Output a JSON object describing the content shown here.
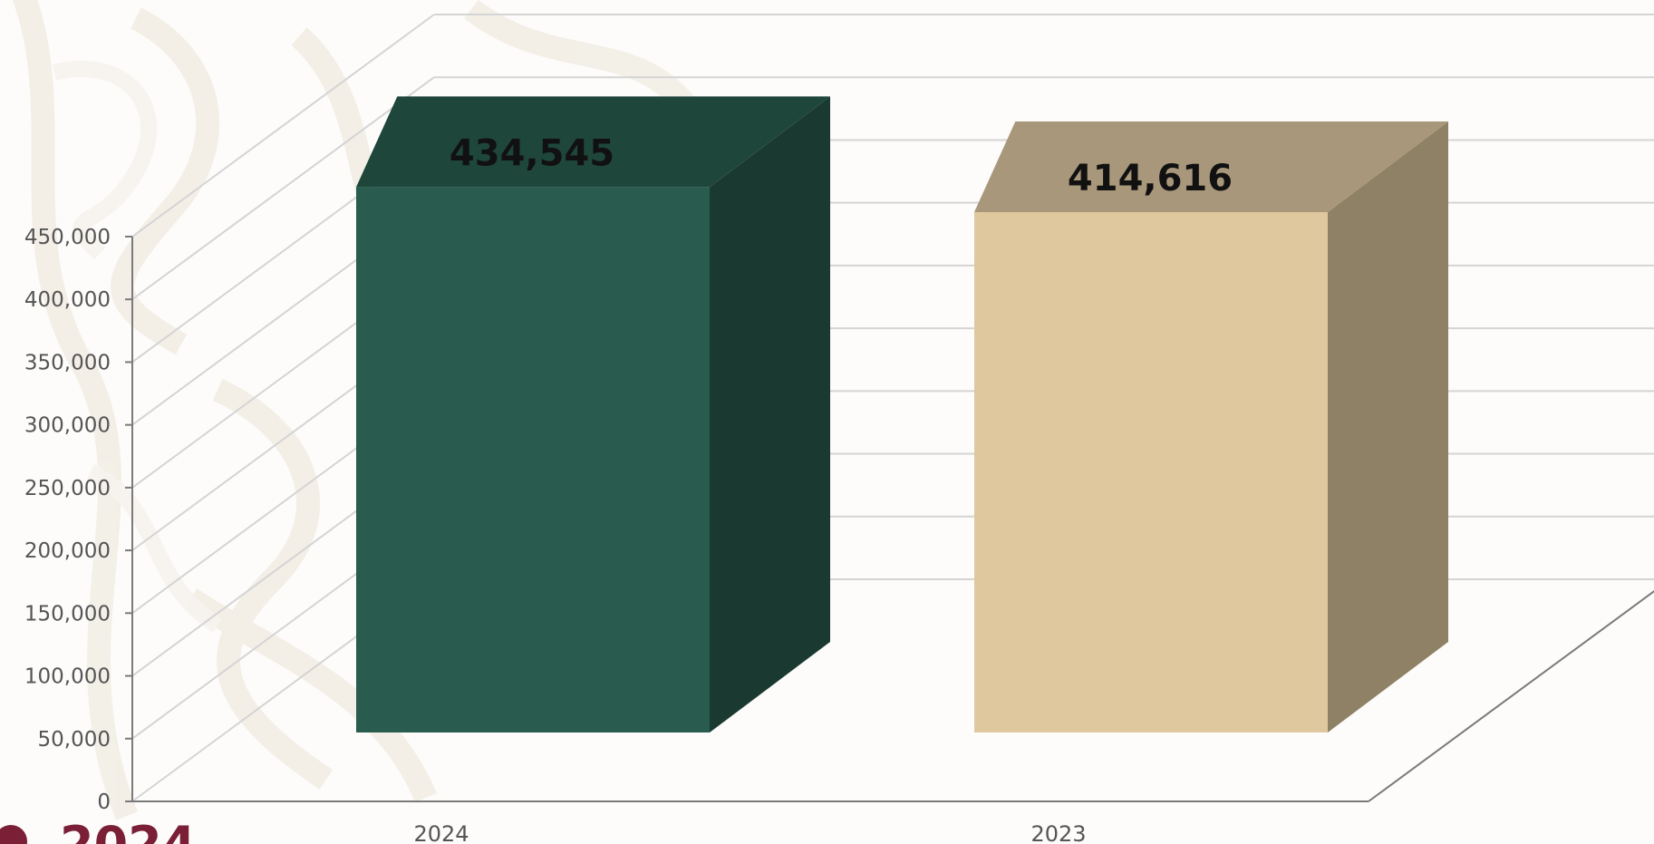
{
  "chart_data": {
    "type": "bar",
    "categories": [
      "2024",
      "2023"
    ],
    "values": [
      434545,
      414616
    ],
    "data_labels": [
      "434,545",
      "414,616"
    ],
    "ylim": [
      0,
      450000
    ],
    "yticks": [
      0,
      50000,
      100000,
      150000,
      200000,
      250000,
      300000,
      350000,
      400000,
      450000
    ],
    "ytick_labels": [
      "0",
      "50,000",
      "100,000",
      "150,000",
      "200,000",
      "250,000",
      "300,000",
      "350,000",
      "400,000",
      "450,000"
    ],
    "grid": true,
    "style": "3d",
    "colors": {
      "bars": [
        "#295c4e",
        "#dfc89e"
      ],
      "bar_tops": [
        "#1e463b",
        "#a8977a"
      ],
      "bar_sides": [
        "#1a3a31",
        "#8f8166"
      ],
      "grid": "#d4d4d4",
      "axis": "#7a7a7a",
      "text": "#555555"
    }
  },
  "footer": {
    "year_fragment": "2024"
  }
}
